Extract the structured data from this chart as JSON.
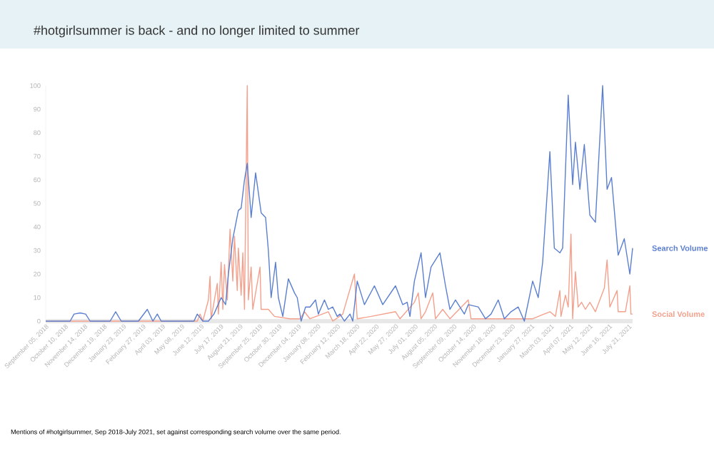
{
  "chart_data": {
    "type": "line",
    "title": "#hotgirlsummer is back - and no longer limited to summer",
    "annotations": [
      "Mentions of #hotgirlsummer, Sep 2018-July 2021, set against corresponding search volume over the same period."
    ],
    "xlim": [
      "2018-09-05",
      "2021-07-28"
    ],
    "xticks": [
      {
        "value": "2018-09-05",
        "label": "September 05, 2018"
      },
      {
        "value": "2018-10-10",
        "label": "October 10, 2018"
      },
      {
        "value": "2018-11-14",
        "label": "November 14, 2018"
      },
      {
        "value": "2018-12-19",
        "label": "December 19, 2018"
      },
      {
        "value": "2019-01-23",
        "label": "January 23, 2019"
      },
      {
        "value": "2019-02-27",
        "label": "February 27, 2019"
      },
      {
        "value": "2019-04-03",
        "label": "April 03, 2019"
      },
      {
        "value": "2019-05-08",
        "label": "May 08, 2019"
      },
      {
        "value": "2019-06-12",
        "label": "June 12, 2019"
      },
      {
        "value": "2019-07-17",
        "label": "July 17, 2019"
      },
      {
        "value": "2019-08-21",
        "label": "August 21, 2019"
      },
      {
        "value": "2019-09-25",
        "label": "September 25, 2019"
      },
      {
        "value": "2019-10-30",
        "label": "October 30, 2019"
      },
      {
        "value": "2019-12-04",
        "label": "December 04, 2019"
      },
      {
        "value": "2020-01-08",
        "label": "January 08, 2020"
      },
      {
        "value": "2020-02-12",
        "label": "February 12, 2020"
      },
      {
        "value": "2020-03-18",
        "label": "March 18, 2020"
      },
      {
        "value": "2020-04-22",
        "label": "April 22, 2020"
      },
      {
        "value": "2020-05-27",
        "label": "May 27, 2020"
      },
      {
        "value": "2020-07-01",
        "label": "July 01, 2020"
      },
      {
        "value": "2020-08-05",
        "label": "August 05, 2020"
      },
      {
        "value": "2020-09-09",
        "label": "September 09, 2020"
      },
      {
        "value": "2020-10-14",
        "label": "October 14, 2020"
      },
      {
        "value": "2020-11-18",
        "label": "November 18, 2020"
      },
      {
        "value": "2020-12-23",
        "label": "December 23, 2020"
      },
      {
        "value": "2021-01-27",
        "label": "January 27, 2021"
      },
      {
        "value": "2021-03-03",
        "label": "March 03, 2021"
      },
      {
        "value": "2021-04-07",
        "label": "April 07, 2021"
      },
      {
        "value": "2021-05-12",
        "label": "May 12, 2021"
      },
      {
        "value": "2021-06-16",
        "label": "June 16, 2021"
      },
      {
        "value": "2021-07-21",
        "label": "July 21, 2021"
      }
    ],
    "ylim": [
      0,
      100
    ],
    "yticks": [
      0,
      10,
      20,
      30,
      40,
      50,
      60,
      70,
      80,
      90,
      100
    ],
    "series": [
      {
        "name": "Search Volume",
        "color": "#5b7fd0",
        "x": [
          "2018-09-05",
          "2018-10-19",
          "2018-10-26",
          "2018-11-06",
          "2018-11-16",
          "2018-11-24",
          "2018-12-30",
          "2019-01-09",
          "2019-01-19",
          "2019-02-19",
          "2019-03-07",
          "2019-03-17",
          "2019-03-25",
          "2019-04-01",
          "2019-05-30",
          "2019-06-05",
          "2019-06-15",
          "2019-06-25",
          "2019-07-05",
          "2019-07-18",
          "2019-07-26",
          "2019-07-31",
          "2019-08-08",
          "2019-08-18",
          "2019-08-23",
          "2019-08-29",
          "2019-09-03",
          "2019-09-10",
          "2019-09-18",
          "2019-09-28",
          "2019-10-06",
          "2019-10-11",
          "2019-10-16",
          "2019-10-24",
          "2019-10-29",
          "2019-11-06",
          "2019-11-16",
          "2019-11-27",
          "2019-12-02",
          "2019-12-09",
          "2019-12-17",
          "2019-12-25",
          "2020-01-04",
          "2020-01-09",
          "2020-01-20",
          "2020-01-27",
          "2020-02-04",
          "2020-02-12",
          "2020-02-17",
          "2020-02-25",
          "2020-03-06",
          "2020-03-11",
          "2020-03-19",
          "2020-04-01",
          "2020-04-19",
          "2020-05-04",
          "2020-05-27",
          "2020-06-09",
          "2020-06-17",
          "2020-06-22",
          "2020-06-30",
          "2020-07-12",
          "2020-07-20",
          "2020-07-30",
          "2020-08-15",
          "2020-08-25",
          "2020-09-02",
          "2020-09-12",
          "2020-09-28",
          "2020-10-05",
          "2020-10-23",
          "2020-11-05",
          "2020-11-15",
          "2020-11-28",
          "2020-12-09",
          "2020-12-21",
          "2021-01-03",
          "2021-01-14",
          "2021-01-29",
          "2021-02-08",
          "2021-02-16",
          "2021-03-01",
          "2021-03-09",
          "2021-03-19",
          "2021-03-24",
          "2021-04-03",
          "2021-04-11",
          "2021-04-16",
          "2021-04-24",
          "2021-05-02",
          "2021-05-12",
          "2021-05-22",
          "2021-06-04",
          "2021-06-12",
          "2021-06-20",
          "2021-07-02",
          "2021-07-13",
          "2021-07-23",
          "2021-07-28"
        ],
        "values": [
          0,
          0,
          3,
          3.5,
          3,
          0,
          0,
          4,
          0,
          0,
          5,
          0,
          3,
          0,
          0,
          3,
          0,
          0,
          3,
          10,
          7,
          20,
          35,
          47,
          48,
          60,
          67,
          44,
          63,
          46,
          44,
          30,
          10,
          25,
          10,
          2,
          18,
          12,
          10,
          0,
          6,
          6,
          9,
          3,
          9,
          5,
          6,
          2,
          3,
          0,
          3,
          0,
          17,
          7,
          15,
          7,
          15,
          7,
          8,
          2,
          17,
          29,
          10,
          23,
          29,
          15,
          5,
          9,
          3,
          7,
          6,
          1,
          3,
          9,
          1,
          4,
          6,
          0,
          17,
          10,
          25,
          72,
          31,
          29,
          31,
          96,
          58,
          76,
          56,
          75,
          45,
          42,
          100,
          56,
          61,
          28,
          35,
          20,
          31
        ]
      },
      {
        "name": "Social Volume",
        "color": "#f4a08c",
        "x": [
          "2018-09-05",
          "2019-06-05",
          "2019-06-10",
          "2019-06-15",
          "2019-06-25",
          "2019-06-28",
          "2019-06-30",
          "2019-07-11",
          "2019-07-13",
          "2019-07-18",
          "2019-07-21",
          "2019-07-24",
          "2019-07-29",
          "2019-08-03",
          "2019-08-08",
          "2019-08-11",
          "2019-08-16",
          "2019-08-18",
          "2019-08-23",
          "2019-08-26",
          "2019-08-29",
          "2019-09-03",
          "2019-09-05",
          "2019-09-10",
          "2019-09-13",
          "2019-09-26",
          "2019-09-28",
          "2019-10-11",
          "2019-10-22",
          "2019-11-19",
          "2019-12-07",
          "2019-12-15",
          "2019-12-25",
          "2020-01-27",
          "2020-02-04",
          "2020-02-22",
          "2020-03-14",
          "2020-03-19",
          "2020-04-13",
          "2020-05-27",
          "2020-06-04",
          "2020-06-30",
          "2020-07-07",
          "2020-07-12",
          "2020-07-20",
          "2020-08-02",
          "2020-08-07",
          "2020-08-20",
          "2020-09-02",
          "2020-10-05",
          "2020-10-10",
          "2021-01-29",
          "2021-03-01",
          "2021-03-11",
          "2021-03-19",
          "2021-03-21",
          "2021-03-29",
          "2021-04-03",
          "2021-04-08",
          "2021-04-11",
          "2021-04-16",
          "2021-04-21",
          "2021-04-27",
          "2021-05-04",
          "2021-05-12",
          "2021-05-22",
          "2021-05-30",
          "2021-06-07",
          "2021-06-12",
          "2021-06-17",
          "2021-06-30",
          "2021-07-02",
          "2021-07-15",
          "2021-07-23",
          "2021-07-25",
          "2021-07-28"
        ],
        "values": [
          0,
          0,
          3,
          0,
          9,
          19,
          1,
          16,
          3,
          25,
          5,
          24,
          9,
          39,
          17,
          36,
          13,
          31,
          11,
          29,
          5,
          100,
          9,
          23,
          5,
          23,
          5,
          5,
          2,
          1,
          1,
          4,
          1,
          4,
          0,
          3,
          20,
          1,
          2,
          4,
          1,
          8,
          12,
          1,
          4,
          12,
          1,
          5,
          1,
          9,
          1,
          1,
          4,
          2,
          13,
          2,
          11,
          6,
          37,
          1,
          21,
          6,
          8,
          5,
          8,
          4,
          9,
          14,
          26,
          6,
          13,
          4,
          4,
          15,
          3,
          3
        ]
      }
    ]
  }
}
